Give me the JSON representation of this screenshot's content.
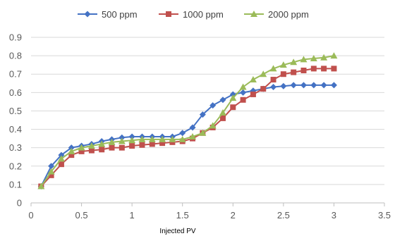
{
  "chart_data": {
    "type": "line",
    "title": "",
    "xlabel": "Injected PV",
    "ylabel": "",
    "xlim": [
      0,
      3.5
    ],
    "ylim": [
      0,
      0.9
    ],
    "x_ticks": [
      0,
      0.5,
      1,
      1.5,
      2,
      2.5,
      3,
      3.5
    ],
    "x_tick_labels": [
      "0",
      "0.5",
      "1",
      "1.5",
      "2",
      "2.5",
      "3",
      "3.5"
    ],
    "y_ticks": [
      0,
      0.1,
      0.2,
      0.3,
      0.4,
      0.5,
      0.6,
      0.7,
      0.8,
      0.9
    ],
    "y_tick_labels": [
      "0",
      "0.1",
      "0.2",
      "0.3",
      "0.4",
      "0.5",
      "0.6",
      "0.7",
      "0.8",
      "0.9"
    ],
    "grid": "horizontal",
    "legend_position": "top",
    "x": [
      0.1,
      0.2,
      0.3,
      0.4,
      0.5,
      0.6,
      0.7,
      0.8,
      0.9,
      1.0,
      1.1,
      1.2,
      1.3,
      1.4,
      1.5,
      1.6,
      1.7,
      1.8,
      1.9,
      2.0,
      2.1,
      2.2,
      2.3,
      2.4,
      2.5,
      2.6,
      2.7,
      2.8,
      2.9,
      3.0
    ],
    "series": [
      {
        "name": "500 ppm",
        "color": "#4472C4",
        "marker": "diamond",
        "values": [
          0.09,
          0.2,
          0.26,
          0.3,
          0.31,
          0.32,
          0.335,
          0.345,
          0.355,
          0.36,
          0.36,
          0.36,
          0.36,
          0.36,
          0.38,
          0.41,
          0.48,
          0.53,
          0.56,
          0.59,
          0.6,
          0.61,
          0.62,
          0.63,
          0.635,
          0.64,
          0.64,
          0.64,
          0.64,
          0.64
        ]
      },
      {
        "name": "1000 ppm",
        "color": "#C0504D",
        "marker": "square",
        "values": [
          0.09,
          0.15,
          0.21,
          0.26,
          0.28,
          0.285,
          0.29,
          0.3,
          0.3,
          0.31,
          0.315,
          0.32,
          0.325,
          0.33,
          0.335,
          0.35,
          0.38,
          0.41,
          0.46,
          0.52,
          0.56,
          0.59,
          0.62,
          0.67,
          0.7,
          0.71,
          0.72,
          0.73,
          0.73,
          0.73
        ]
      },
      {
        "name": "2000 ppm",
        "color": "#9BBB59",
        "marker": "triangle",
        "values": [
          0.09,
          0.17,
          0.24,
          0.28,
          0.3,
          0.31,
          0.32,
          0.33,
          0.335,
          0.34,
          0.345,
          0.345,
          0.345,
          0.345,
          0.345,
          0.36,
          0.38,
          0.42,
          0.49,
          0.57,
          0.63,
          0.67,
          0.7,
          0.73,
          0.75,
          0.765,
          0.78,
          0.785,
          0.79,
          0.8
        ]
      }
    ]
  }
}
